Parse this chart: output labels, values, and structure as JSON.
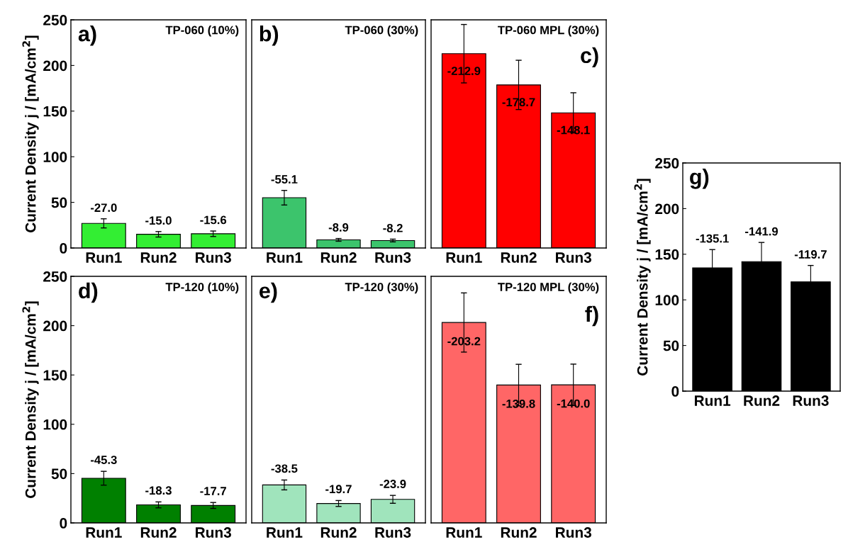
{
  "chart_data": [
    {
      "type": "bar",
      "title": "TP-060 (10%)",
      "annotations": [
        "a)"
      ],
      "ylabel": "Current Density j / [mA/cm$^{2}$]",
      "categories": [
        "Run1",
        "Run2",
        "Run3"
      ],
      "values": [
        -27.0,
        -15.0,
        -15.6
      ],
      "errors": [
        5,
        3,
        3
      ],
      "value_labels": [
        "-27.0",
        "-15.0",
        "-15.6"
      ],
      "color": "#33ee33",
      "ylim": [
        0,
        -250
      ],
      "yticks": [
        {
          "value": 0,
          "label": "0"
        },
        {
          "value": -50,
          "label": "50"
        },
        {
          "value": -100,
          "label": "100"
        },
        {
          "value": -150,
          "label": "150"
        },
        {
          "value": -200,
          "label": "200"
        },
        {
          "value": -250,
          "label": "250"
        }
      ]
    },
    {
      "type": "bar",
      "title": "TP-060 (30%)",
      "annotations": [
        "b)"
      ],
      "categories": [
        "Run1",
        "Run2",
        "Run3"
      ],
      "values": [
        -55.1,
        -8.9,
        -8.2
      ],
      "errors": [
        8,
        1.5,
        1.5
      ],
      "value_labels": [
        "-55.1",
        "-8.9",
        "-8.2"
      ],
      "color": "#3cc46c",
      "ylim": [
        0,
        -250
      ],
      "tick_labels": "x"
    },
    {
      "type": "bar",
      "title": "TP-060 MPL (30%)",
      "annotations": [
        "c)"
      ],
      "categories": [
        "Run1",
        "Run2",
        "Run3"
      ],
      "values": [
        -212.9,
        -178.7,
        -148.1
      ],
      "errors": [
        32,
        27,
        22
      ],
      "value_labels": [
        "-212.9",
        "-178.7",
        "-148.1"
      ],
      "color": "#ff0000",
      "ylim": [
        0,
        -250
      ],
      "tick_labels": "x"
    },
    {
      "type": "bar",
      "title": "TP-120 (10%)",
      "annotations": [
        "d)"
      ],
      "ylabel": "Current Density j / [mA/cm$^{2}$]",
      "categories": [
        "Run1",
        "Run2",
        "Run3"
      ],
      "values": [
        -45.3,
        -18.3,
        -17.7
      ],
      "errors": [
        7,
        3,
        3
      ],
      "value_labels": [
        "-45.3",
        "-18.3",
        "-17.7"
      ],
      "color": "#008000",
      "ylim": [
        0,
        -250
      ],
      "yticks": [
        {
          "value": 0,
          "label": "0"
        },
        {
          "value": -50,
          "label": "50"
        },
        {
          "value": -100,
          "label": "100"
        },
        {
          "value": -150,
          "label": "150"
        },
        {
          "value": -200,
          "label": "200"
        },
        {
          "value": -250,
          "label": "250"
        }
      ]
    },
    {
      "type": "bar",
      "title": "TP-120 (30%)",
      "annotations": [
        "e)"
      ],
      "categories": [
        "Run1",
        "Run2",
        "Run3"
      ],
      "values": [
        -38.5,
        -19.7,
        -23.9
      ],
      "errors": [
        5,
        3,
        4
      ],
      "value_labels": [
        "-38.5",
        "-19.7",
        "-23.9"
      ],
      "color": "#a0e4bc",
      "ylim": [
        0,
        -250
      ],
      "tick_labels": "x"
    },
    {
      "type": "bar",
      "title": "TP-120 MPL (30%)",
      "annotations": [
        "f)"
      ],
      "categories": [
        "Run1",
        "Run2",
        "Run3"
      ],
      "values": [
        -203.2,
        -139.8,
        -140.0
      ],
      "errors": [
        30,
        21,
        21
      ],
      "value_labels": [
        "-203.2",
        "-139.8",
        "-140.0"
      ],
      "color": "#ff6666",
      "ylim": [
        0,
        -250
      ],
      "tick_labels": "x"
    },
    {
      "type": "bar",
      "annotations": [
        "g)"
      ],
      "ylabel": "Current Density j / [mA/cm$^{2}$]",
      "categories": [
        "Run1",
        "Run2",
        "Run3"
      ],
      "values": [
        -135.1,
        -141.9,
        -119.7
      ],
      "errors": [
        20,
        21,
        18
      ],
      "value_labels": [
        "-135.1",
        "-141.9",
        "-119.7"
      ],
      "color": "#000000",
      "ylim": [
        0,
        -250
      ],
      "yticks": [
        {
          "value": 0,
          "label": "0"
        },
        {
          "value": -50,
          "label": "50"
        },
        {
          "value": -100,
          "label": "100"
        },
        {
          "value": -150,
          "label": "150"
        },
        {
          "value": -200,
          "label": "200"
        },
        {
          "value": -250,
          "label": "250"
        }
      ]
    }
  ]
}
